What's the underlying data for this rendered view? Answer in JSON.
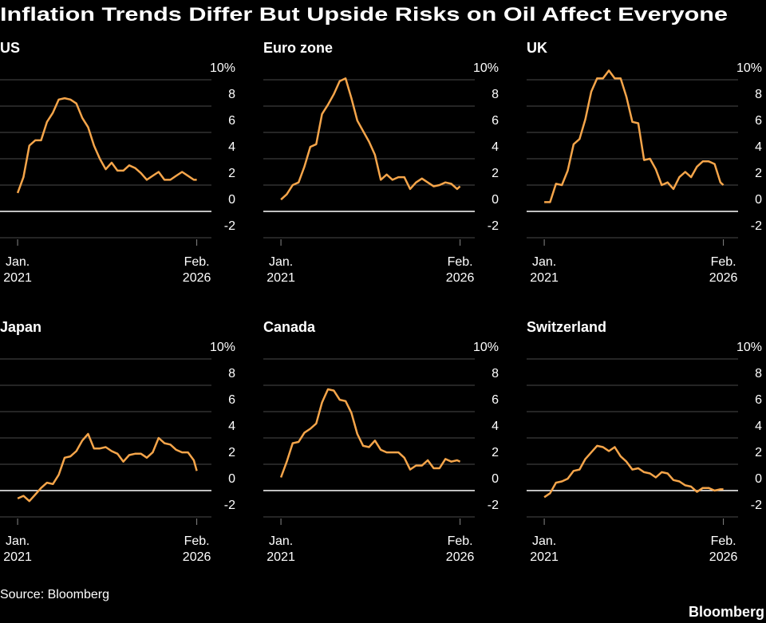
{
  "title": "Inflation Trends Differ But Upside Risks on Oil Affect Everyone",
  "source": "Source: Bloomberg",
  "brand": "Bloomberg",
  "chart_data": [
    {
      "type": "line",
      "title": "US",
      "x": [
        "2021-01",
        "2021-03",
        "2021-05",
        "2021-07",
        "2021-09",
        "2021-11",
        "2022-01",
        "2022-03",
        "2022-05",
        "2022-07",
        "2022-09",
        "2022-11",
        "2023-01",
        "2023-03",
        "2023-05",
        "2023-07",
        "2023-09",
        "2023-11",
        "2024-01",
        "2024-03",
        "2024-05",
        "2024-07",
        "2024-09",
        "2024-11",
        "2025-01",
        "2025-03",
        "2025-05",
        "2025-07",
        "2025-09",
        "2025-11",
        "2026-01",
        "2026-02"
      ],
      "values": [
        1.4,
        2.6,
        5.0,
        5.4,
        5.4,
        6.8,
        7.5,
        8.5,
        8.6,
        8.5,
        8.2,
        7.1,
        6.4,
        5.0,
        4.0,
        3.2,
        3.7,
        3.1,
        3.1,
        3.5,
        3.3,
        2.9,
        2.4,
        2.7,
        3.0,
        2.4,
        2.4,
        2.7,
        3.0,
        2.7,
        2.4,
        2.4
      ],
      "color": "#f5a54a",
      "xlim": [
        "2020-07",
        "2026-07"
      ],
      "ylim": [
        -2,
        10
      ],
      "yticks": [
        {
          "value": 10,
          "label": "10%"
        },
        8,
        6,
        4,
        2,
        0,
        -2
      ],
      "xticks": [
        {
          "value": "2021-01",
          "label": [
            "Jan.",
            "2021"
          ]
        },
        {
          "value": "2026-02",
          "label": [
            "Feb.",
            "2026"
          ]
        }
      ],
      "grid": true
    },
    {
      "type": "line",
      "title": "Euro zone",
      "x": [
        "2021-01",
        "2021-03",
        "2021-05",
        "2021-07",
        "2021-09",
        "2021-11",
        "2022-01",
        "2022-03",
        "2022-05",
        "2022-07",
        "2022-09",
        "2022-11",
        "2023-01",
        "2023-03",
        "2023-05",
        "2023-07",
        "2023-09",
        "2023-11",
        "2024-01",
        "2024-03",
        "2024-05",
        "2024-07",
        "2024-09",
        "2024-11",
        "2025-01",
        "2025-03",
        "2025-05",
        "2025-07",
        "2025-09",
        "2025-11",
        "2026-01",
        "2026-02"
      ],
      "values": [
        0.9,
        1.3,
        2.0,
        2.2,
        3.4,
        4.9,
        5.1,
        7.4,
        8.1,
        8.9,
        9.9,
        10.1,
        8.6,
        6.9,
        6.1,
        5.3,
        4.3,
        2.4,
        2.8,
        2.4,
        2.6,
        2.6,
        1.7,
        2.2,
        2.5,
        2.2,
        1.9,
        2.0,
        2.2,
        2.1,
        1.7,
        1.9
      ],
      "color": "#f5a54a",
      "xlim": [
        "2020-07",
        "2026-07"
      ],
      "ylim": [
        -2,
        10
      ],
      "yticks": [
        {
          "value": 10,
          "label": "10%"
        },
        8,
        6,
        4,
        2,
        0,
        -2
      ],
      "xticks": [
        {
          "value": "2021-01",
          "label": [
            "Jan.",
            "2021"
          ]
        },
        {
          "value": "2026-02",
          "label": [
            "Feb.",
            "2026"
          ]
        }
      ],
      "grid": true
    },
    {
      "type": "line",
      "title": "UK",
      "x": [
        "2021-01",
        "2021-03",
        "2021-05",
        "2021-07",
        "2021-09",
        "2021-11",
        "2022-01",
        "2022-03",
        "2022-05",
        "2022-07",
        "2022-09",
        "2022-11",
        "2023-01",
        "2023-03",
        "2023-05",
        "2023-07",
        "2023-09",
        "2023-11",
        "2024-01",
        "2024-03",
        "2024-05",
        "2024-07",
        "2024-09",
        "2024-11",
        "2025-01",
        "2025-03",
        "2025-05",
        "2025-07",
        "2025-09",
        "2025-11",
        "2026-01",
        "2026-02"
      ],
      "values": [
        0.7,
        0.7,
        2.1,
        2.0,
        3.1,
        5.1,
        5.5,
        7.0,
        9.1,
        10.1,
        10.1,
        10.7,
        10.1,
        10.1,
        8.7,
        6.8,
        6.7,
        3.9,
        4.0,
        3.2,
        2.0,
        2.2,
        1.7,
        2.6,
        3.0,
        2.6,
        3.4,
        3.8,
        3.8,
        3.6,
        2.2,
        2.0
      ],
      "color": "#f5a54a",
      "xlim": [
        "2020-07",
        "2026-07"
      ],
      "ylim": [
        -2,
        10
      ],
      "yticks": [
        {
          "value": 10,
          "label": "10%"
        },
        8,
        6,
        4,
        2,
        0,
        -2
      ],
      "xticks": [
        {
          "value": "2021-01",
          "label": [
            "Jan.",
            "2021"
          ]
        },
        {
          "value": "2026-02",
          "label": [
            "Feb.",
            "2026"
          ]
        }
      ],
      "grid": true
    },
    {
      "type": "line",
      "title": "Japan",
      "x": [
        "2021-01",
        "2021-03",
        "2021-05",
        "2021-07",
        "2021-09",
        "2021-11",
        "2022-01",
        "2022-03",
        "2022-05",
        "2022-07",
        "2022-09",
        "2022-11",
        "2023-01",
        "2023-03",
        "2023-05",
        "2023-07",
        "2023-09",
        "2023-11",
        "2024-01",
        "2024-03",
        "2024-05",
        "2024-07",
        "2024-09",
        "2024-11",
        "2025-01",
        "2025-03",
        "2025-05",
        "2025-07",
        "2025-09",
        "2025-11",
        "2026-01",
        "2026-02"
      ],
      "values": [
        -0.6,
        -0.4,
        -0.8,
        -0.3,
        0.2,
        0.6,
        0.5,
        1.2,
        2.5,
        2.6,
        3.0,
        3.8,
        4.3,
        3.2,
        3.2,
        3.3,
        3.0,
        2.8,
        2.2,
        2.7,
        2.8,
        2.8,
        2.5,
        2.9,
        4.0,
        3.6,
        3.5,
        3.1,
        2.9,
        2.9,
        2.3,
        1.5
      ],
      "color": "#f5a54a",
      "xlim": [
        "2020-07",
        "2026-07"
      ],
      "ylim": [
        -2,
        10
      ],
      "yticks": [
        {
          "value": 10,
          "label": "10%"
        },
        8,
        6,
        4,
        2,
        0,
        -2
      ],
      "xticks": [
        {
          "value": "2021-01",
          "label": [
            "Jan.",
            "2021"
          ]
        },
        {
          "value": "2026-02",
          "label": [
            "Feb.",
            "2026"
          ]
        }
      ],
      "grid": true
    },
    {
      "type": "line",
      "title": "Canada",
      "x": [
        "2021-01",
        "2021-03",
        "2021-05",
        "2021-07",
        "2021-09",
        "2021-11",
        "2022-01",
        "2022-03",
        "2022-05",
        "2022-07",
        "2022-09",
        "2022-11",
        "2023-01",
        "2023-03",
        "2023-05",
        "2023-07",
        "2023-09",
        "2023-11",
        "2024-01",
        "2024-03",
        "2024-05",
        "2024-07",
        "2024-09",
        "2024-11",
        "2025-01",
        "2025-03",
        "2025-05",
        "2025-07",
        "2025-09",
        "2025-11",
        "2026-01",
        "2026-02"
      ],
      "values": [
        1.0,
        2.2,
        3.6,
        3.7,
        4.4,
        4.7,
        5.1,
        6.7,
        7.7,
        7.6,
        6.9,
        6.8,
        5.9,
        4.3,
        3.4,
        3.3,
        3.8,
        3.1,
        2.9,
        2.9,
        2.9,
        2.5,
        1.6,
        1.9,
        1.9,
        2.3,
        1.7,
        1.7,
        2.4,
        2.2,
        2.3,
        2.2
      ],
      "color": "#f5a54a",
      "xlim": [
        "2020-07",
        "2026-07"
      ],
      "ylim": [
        -2,
        10
      ],
      "yticks": [
        {
          "value": 10,
          "label": "10%"
        },
        8,
        6,
        4,
        2,
        0,
        -2
      ],
      "xticks": [
        {
          "value": "2021-01",
          "label": [
            "Jan.",
            "2021"
          ]
        },
        {
          "value": "2026-02",
          "label": [
            "Feb.",
            "2026"
          ]
        }
      ],
      "grid": true
    },
    {
      "type": "line",
      "title": "Switzerland",
      "x": [
        "2021-01",
        "2021-03",
        "2021-05",
        "2021-07",
        "2021-09",
        "2021-11",
        "2022-01",
        "2022-03",
        "2022-05",
        "2022-07",
        "2022-09",
        "2022-11",
        "2023-01",
        "2023-03",
        "2023-05",
        "2023-07",
        "2023-09",
        "2023-11",
        "2024-01",
        "2024-03",
        "2024-05",
        "2024-07",
        "2024-09",
        "2024-11",
        "2025-01",
        "2025-03",
        "2025-05",
        "2025-07",
        "2025-09",
        "2025-11",
        "2026-01",
        "2026-02"
      ],
      "values": [
        -0.5,
        -0.2,
        0.6,
        0.7,
        0.9,
        1.5,
        1.6,
        2.4,
        2.9,
        3.4,
        3.3,
        3.0,
        3.3,
        2.6,
        2.2,
        1.6,
        1.7,
        1.4,
        1.3,
        1.0,
        1.4,
        1.3,
        0.8,
        0.7,
        0.4,
        0.3,
        -0.1,
        0.2,
        0.2,
        0.0,
        0.1,
        0.1
      ],
      "color": "#f5a54a",
      "xlim": [
        "2020-07",
        "2026-07"
      ],
      "ylim": [
        -2,
        10
      ],
      "yticks": [
        {
          "value": 10,
          "label": "10%"
        },
        8,
        6,
        4,
        2,
        0,
        -2
      ],
      "xticks": [
        {
          "value": "2021-01",
          "label": [
            "Jan.",
            "2021"
          ]
        },
        {
          "value": "2026-02",
          "label": [
            "Feb.",
            "2026"
          ]
        }
      ],
      "grid": true
    }
  ]
}
